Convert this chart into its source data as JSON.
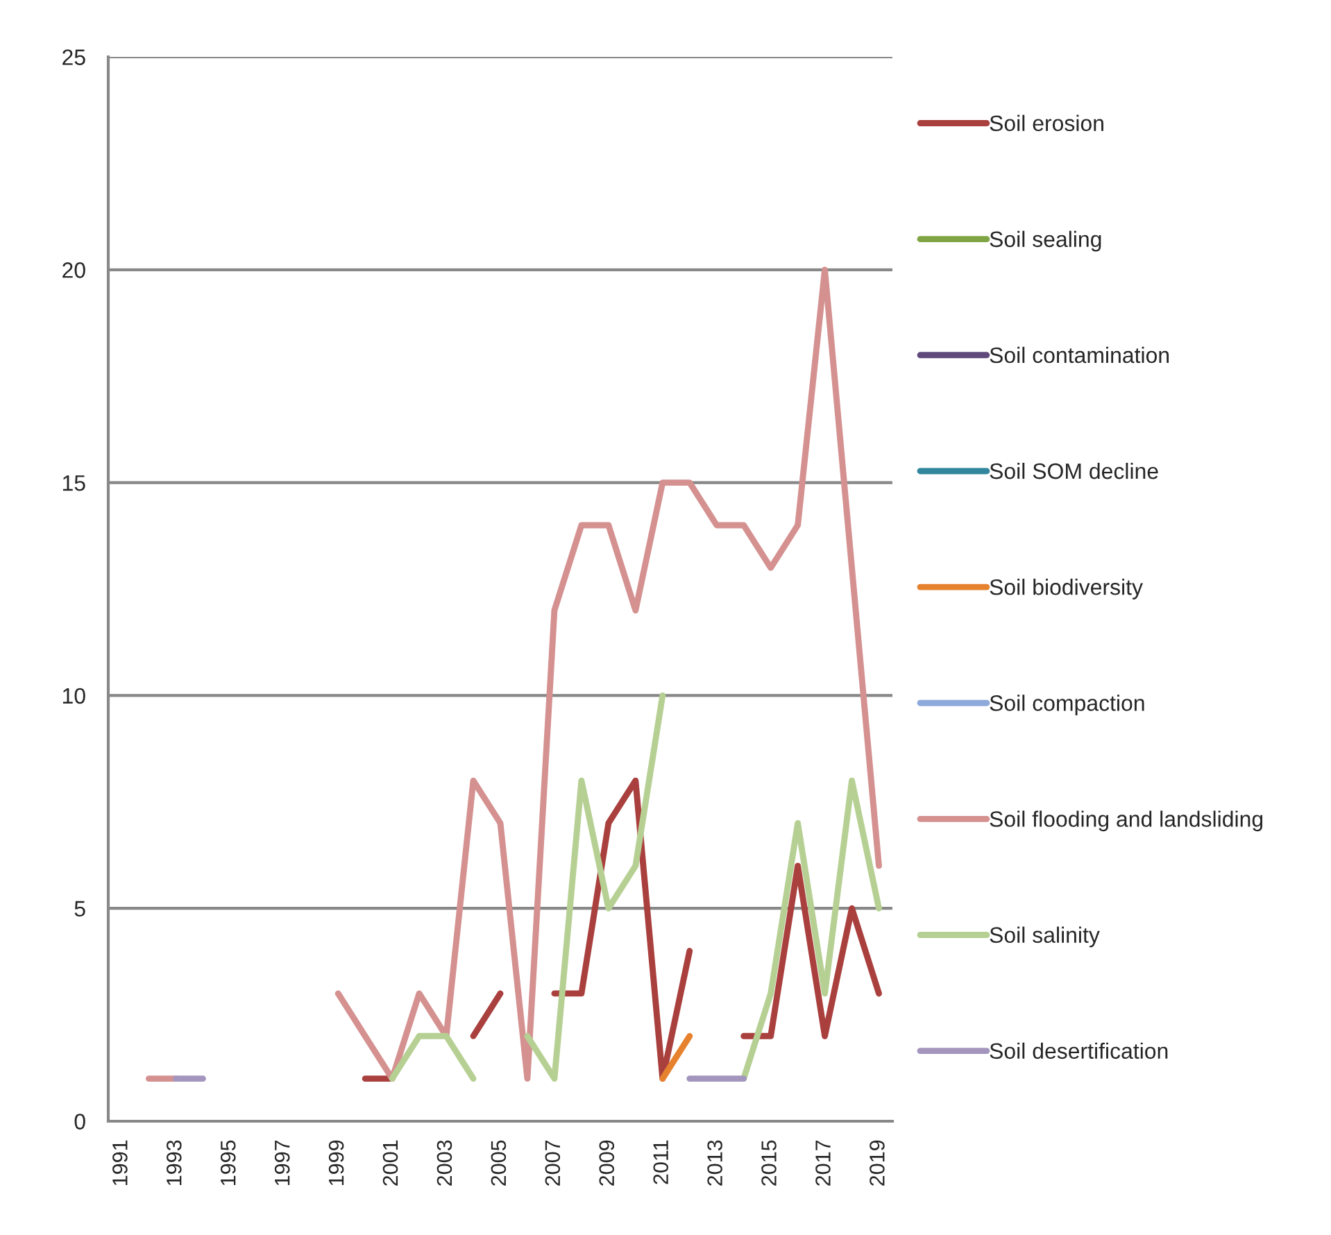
{
  "chart_data": {
    "type": "line",
    "categories": [
      "1991",
      null,
      "1993",
      null,
      "1995",
      null,
      "1997",
      null,
      "1999",
      null,
      "2001",
      null,
      "2003",
      null,
      "2005",
      null,
      "2007",
      null,
      "2009",
      null,
      "2011",
      null,
      "2013",
      null,
      "2015",
      null,
      "2017",
      null,
      "2019"
    ],
    "series": [
      {
        "name": "Soil erosion",
        "color": "#a9403e",
        "values": [
          null,
          null,
          null,
          null,
          null,
          null,
          null,
          null,
          null,
          1,
          1,
          null,
          null,
          2,
          3,
          null,
          3,
          3,
          7,
          8,
          1,
          4,
          null,
          2,
          2,
          6,
          2,
          5,
          3
        ]
      },
      {
        "name": "Soil sealing",
        "color": "#7ea443",
        "values": [
          null,
          null,
          null,
          null,
          null,
          null,
          null,
          null,
          null,
          null,
          null,
          null,
          null,
          null,
          null,
          null,
          null,
          null,
          null,
          null,
          null,
          null,
          null,
          null,
          null,
          null,
          null,
          null,
          null
        ]
      },
      {
        "name": "Soil contamination",
        "color": "#604a7b",
        "values": [
          null,
          null,
          null,
          null,
          null,
          null,
          null,
          null,
          null,
          null,
          null,
          null,
          null,
          null,
          null,
          null,
          null,
          null,
          null,
          null,
          null,
          null,
          null,
          null,
          null,
          null,
          null,
          null,
          null
        ]
      },
      {
        "name": "Soil SOM decline",
        "color": "#31859c",
        "values": [
          null,
          null,
          null,
          null,
          null,
          null,
          null,
          null,
          null,
          null,
          null,
          null,
          null,
          null,
          null,
          null,
          null,
          null,
          null,
          null,
          null,
          null,
          null,
          null,
          null,
          null,
          null,
          null,
          null
        ]
      },
      {
        "name": "Soil biodiversity",
        "color": "#e6812e",
        "values": [
          null,
          null,
          null,
          null,
          null,
          null,
          null,
          null,
          null,
          null,
          null,
          null,
          null,
          null,
          null,
          null,
          null,
          null,
          null,
          null,
          1,
          2,
          null,
          null,
          null,
          null,
          null,
          null,
          null
        ]
      },
      {
        "name": "Soil compaction",
        "color": "#8eaadb",
        "values": [
          null,
          null,
          null,
          null,
          null,
          null,
          null,
          null,
          null,
          null,
          null,
          null,
          null,
          null,
          null,
          null,
          null,
          null,
          null,
          null,
          null,
          null,
          null,
          null,
          null,
          null,
          null,
          null,
          null
        ]
      },
      {
        "name": "Soil flooding and landsliding",
        "color": "#d49190",
        "values": [
          null,
          1,
          1,
          null,
          null,
          null,
          null,
          null,
          3,
          2,
          1,
          3,
          2,
          8,
          7,
          1,
          12,
          14,
          14,
          12,
          15,
          15,
          14,
          14,
          13,
          14,
          20,
          13,
          6
        ]
      },
      {
        "name": "Soil salinity",
        "color": "#b6d094",
        "values": [
          null,
          null,
          null,
          null,
          null,
          null,
          null,
          null,
          null,
          null,
          1,
          2,
          2,
          1,
          null,
          2,
          1,
          8,
          5,
          6,
          10,
          null,
          null,
          1,
          3,
          7,
          3,
          8,
          5
        ]
      },
      {
        "name": "Soil desertification",
        "color": "#a395bd",
        "values": [
          null,
          null,
          1,
          1,
          null,
          null,
          null,
          null,
          null,
          null,
          null,
          null,
          null,
          null,
          null,
          null,
          null,
          null,
          null,
          null,
          null,
          1,
          1,
          1,
          null,
          null,
          null,
          null,
          null
        ]
      }
    ],
    "ylim": [
      0,
      25
    ],
    "yticks": [
      0,
      5,
      10,
      15,
      20,
      25
    ],
    "grid": "y",
    "legend": "right",
    "marker": "none",
    "line_style": "solid"
  }
}
